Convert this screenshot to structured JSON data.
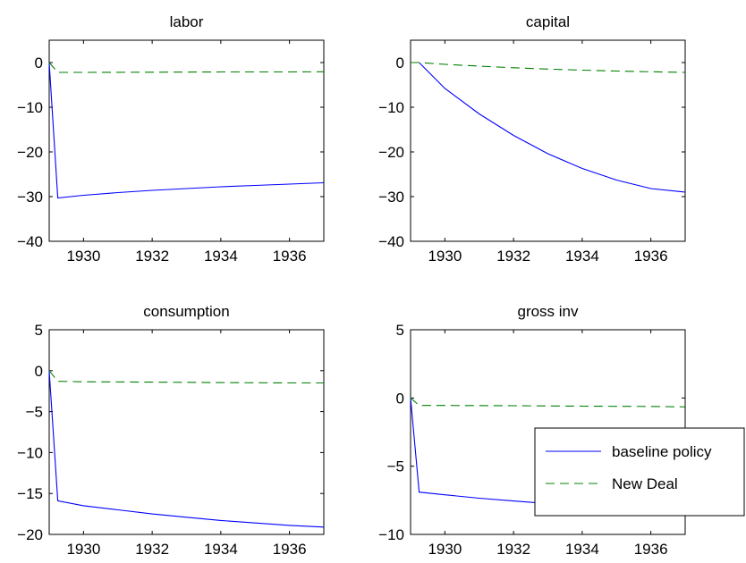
{
  "colors": {
    "baseline": "#0000ff",
    "new_deal": "#008000",
    "axes": "#000000",
    "background": "#ffffff"
  },
  "legend": {
    "placement": "inside lower-right of gross inv panel",
    "entries": [
      "baseline policy",
      "New Deal"
    ]
  },
  "chart_data": [
    {
      "type": "line",
      "title": "labor",
      "xlim": [
        1929,
        1937
      ],
      "ylim": [
        -40,
        5
      ],
      "xticks": [
        1930,
        1932,
        1934,
        1936
      ],
      "xtick_labels": [
        "1930",
        "1932",
        "1934",
        "1936"
      ],
      "yticks": [
        -40,
        -30,
        -20,
        -10,
        0
      ],
      "ytick_labels": [
        "−40",
        "−30",
        "−20",
        "−10",
        "0"
      ],
      "series": [
        {
          "name": "baseline policy",
          "style": "solid",
          "x": [
            1929,
            1929.25,
            1930,
            1931,
            1932,
            1933,
            1934,
            1935,
            1936,
            1937
          ],
          "y": [
            0,
            -30.3,
            -29.7,
            -29.1,
            -28.6,
            -28.2,
            -27.8,
            -27.5,
            -27.2,
            -26.9
          ]
        },
        {
          "name": "New Deal",
          "style": "dashed",
          "x": [
            1929,
            1929.25,
            1930,
            1932,
            1934,
            1936,
            1937
          ],
          "y": [
            0,
            -2.2,
            -2.2,
            -2.15,
            -2.1,
            -2.1,
            -2.05
          ]
        }
      ]
    },
    {
      "type": "line",
      "title": "capital",
      "xlim": [
        1929,
        1937
      ],
      "ylim": [
        -40,
        5
      ],
      "xticks": [
        1930,
        1932,
        1934,
        1936
      ],
      "xtick_labels": [
        "1930",
        "1932",
        "1934",
        "1936"
      ],
      "yticks": [
        -40,
        -30,
        -20,
        -10,
        0
      ],
      "ytick_labels": [
        "−40",
        "−30",
        "−20",
        "−10",
        "0"
      ],
      "series": [
        {
          "name": "baseline policy",
          "style": "solid",
          "x": [
            1929,
            1929.25,
            1930,
            1931,
            1932,
            1933,
            1934,
            1935,
            1936,
            1937
          ],
          "y": [
            0,
            0,
            -5.8,
            -11.5,
            -16.3,
            -20.4,
            -23.7,
            -26.3,
            -28.2,
            -29.0
          ]
        },
        {
          "name": "New Deal",
          "style": "dashed",
          "x": [
            1929,
            1929.25,
            1930,
            1931,
            1932,
            1933,
            1934,
            1935,
            1936,
            1937
          ],
          "y": [
            0,
            0,
            -0.4,
            -0.8,
            -1.15,
            -1.45,
            -1.7,
            -1.9,
            -2.05,
            -2.2
          ]
        }
      ]
    },
    {
      "type": "line",
      "title": "consumption",
      "xlim": [
        1929,
        1937
      ],
      "ylim": [
        -20,
        5
      ],
      "xticks": [
        1930,
        1932,
        1934,
        1936
      ],
      "xtick_labels": [
        "1930",
        "1932",
        "1934",
        "1936"
      ],
      "yticks": [
        -20,
        -15,
        -10,
        -5,
        0,
        5
      ],
      "ytick_labels": [
        "−20",
        "−15",
        "−10",
        "−5",
        "0",
        "5"
      ],
      "series": [
        {
          "name": "baseline policy",
          "style": "solid",
          "x": [
            1929,
            1929.25,
            1930,
            1931,
            1932,
            1933,
            1934,
            1935,
            1936,
            1937
          ],
          "y": [
            0,
            -15.9,
            -16.5,
            -17.0,
            -17.5,
            -17.9,
            -18.3,
            -18.6,
            -18.9,
            -19.1
          ]
        },
        {
          "name": "New Deal",
          "style": "dashed",
          "x": [
            1929,
            1929.25,
            1930,
            1932,
            1934,
            1936,
            1937
          ],
          "y": [
            0,
            -1.3,
            -1.35,
            -1.4,
            -1.45,
            -1.5,
            -1.5
          ]
        }
      ]
    },
    {
      "type": "line",
      "title": "gross inv",
      "xlim": [
        1929,
        1937
      ],
      "ylim": [
        -10,
        5
      ],
      "xticks": [
        1930,
        1932,
        1934,
        1936
      ],
      "xtick_labels": [
        "1930",
        "1932",
        "1934",
        "1936"
      ],
      "yticks": [
        -10,
        -5,
        0,
        5
      ],
      "ytick_labels": [
        "−10",
        "−5",
        "0",
        "5"
      ],
      "series": [
        {
          "name": "baseline policy",
          "style": "solid",
          "x": [
            1929,
            1929.25,
            1930,
            1931,
            1932,
            1933,
            1934,
            1935,
            1936,
            1937
          ],
          "y": [
            0,
            -6.9,
            -7.1,
            -7.35,
            -7.55,
            -7.75,
            -7.9,
            -8.05,
            -8.15,
            -8.25
          ]
        },
        {
          "name": "New Deal",
          "style": "dashed",
          "x": [
            1929,
            1929.25,
            1930,
            1932,
            1934,
            1936,
            1937
          ],
          "y": [
            0,
            -0.55,
            -0.55,
            -0.57,
            -0.6,
            -0.62,
            -0.65
          ]
        }
      ]
    }
  ]
}
